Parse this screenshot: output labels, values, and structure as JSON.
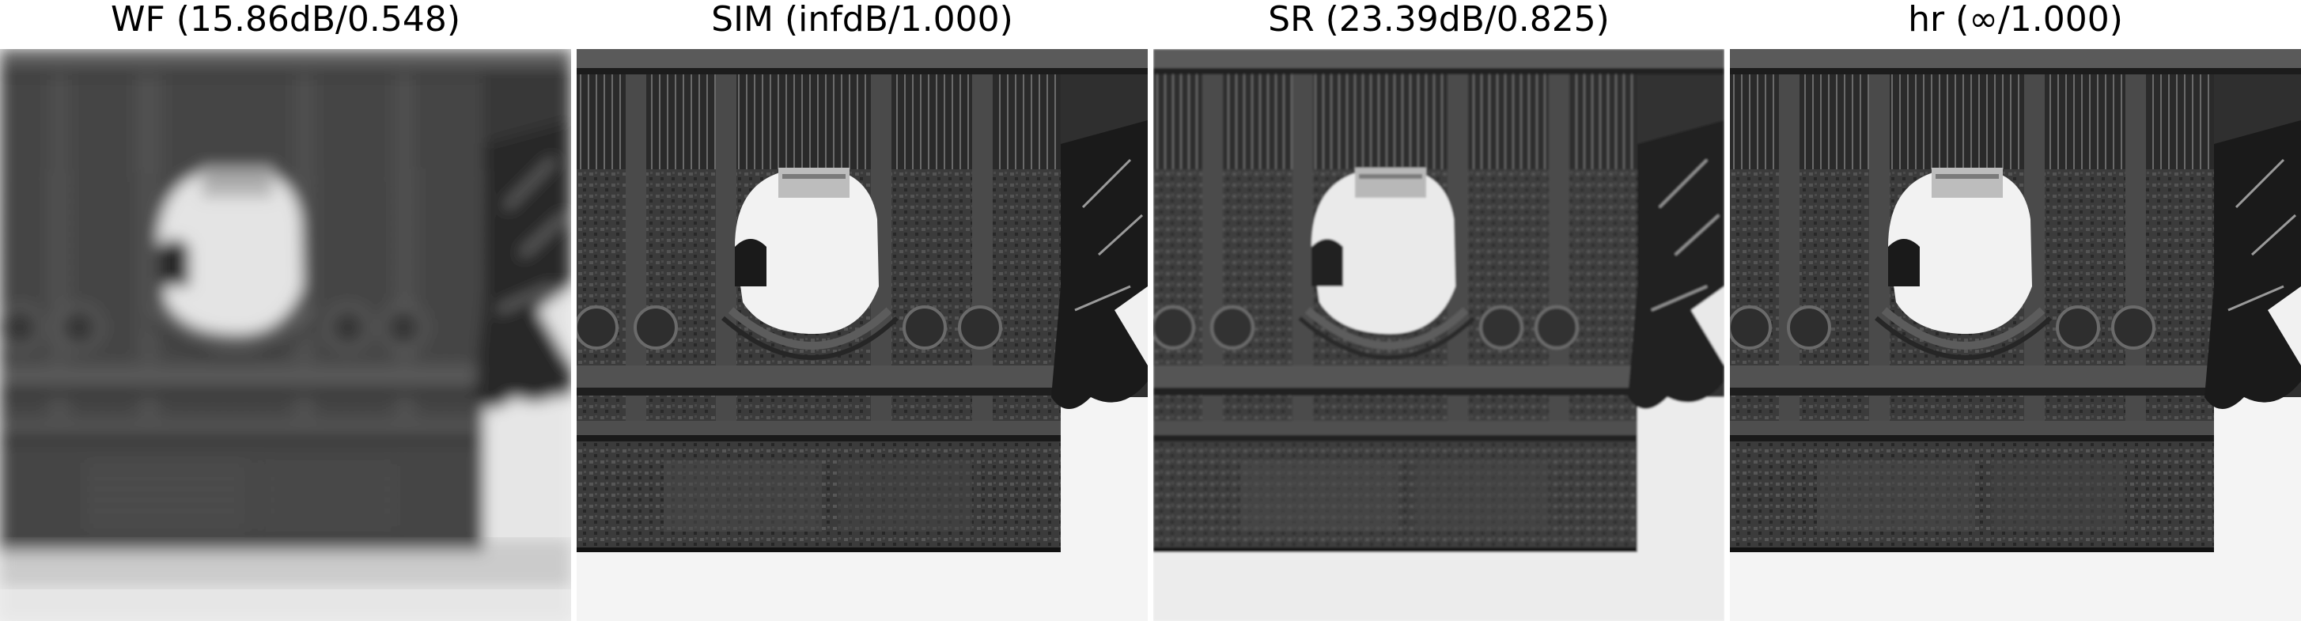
{
  "panels": [
    {
      "id": "wf",
      "title": "WF (15.86dB/0.548)",
      "variant": "blurred"
    },
    {
      "id": "sim",
      "title": "SIM (infdB/1.000)",
      "variant": "sharp"
    },
    {
      "id": "sr",
      "title": "SR (23.39dB/0.825)",
      "variant": "smooth"
    },
    {
      "id": "hr",
      "title": "hr (∞/1.000)",
      "variant": "sharp"
    }
  ],
  "colors": {
    "background": "#ffffff",
    "sky": "#f4f4f4",
    "stone": "#3a3a3a",
    "dark": "#141414"
  }
}
